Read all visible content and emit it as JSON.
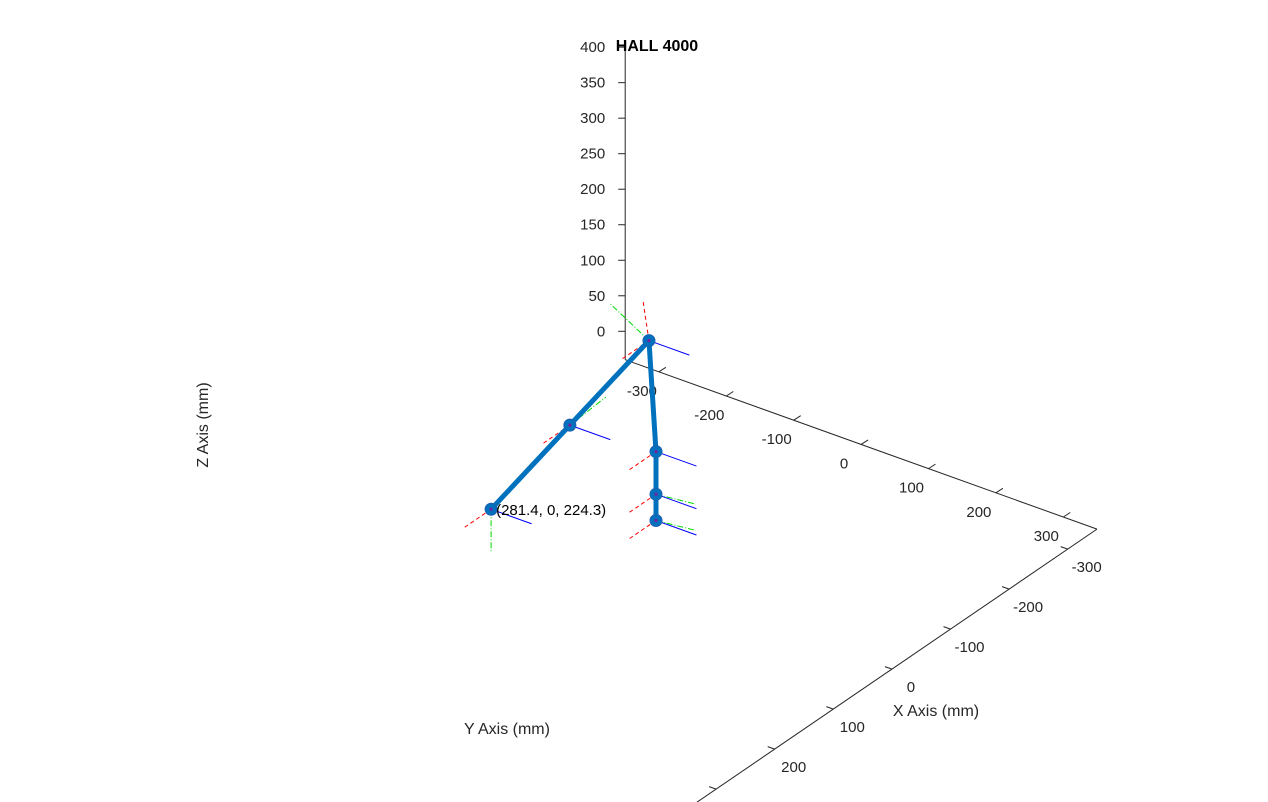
{
  "chart_data": {
    "type": "line3d",
    "title": "HALL 4000",
    "xlabel": "X Axis (mm)",
    "ylabel": "Y Axis (mm)",
    "zlabel": "Z Axis (mm)",
    "xlim": [
      -350,
      350
    ],
    "ylim": [
      -350,
      350
    ],
    "zlim": [
      -40,
      410
    ],
    "x_ticks": [
      -300,
      -200,
      -100,
      0,
      100,
      200,
      300
    ],
    "y_ticks": [
      -300,
      -200,
      -100,
      0,
      100,
      200,
      300
    ],
    "z_ticks": [
      0,
      50,
      100,
      150,
      200,
      250,
      300,
      350,
      400
    ],
    "grid": false,
    "series": [
      {
        "color": "#0072BD",
        "joints": [
          {
            "x": 0,
            "y": 0,
            "z": 50
          },
          {
            "x": 0,
            "y": 0,
            "z": 87
          },
          {
            "x": 0,
            "y": 0,
            "z": 147
          },
          {
            "x": 12,
            "y": 0,
            "z": 310
          },
          {
            "x": 147,
            "y": 0,
            "z": 267
          },
          {
            "x": 281.4,
            "y": 0,
            "z": 224.3
          }
        ]
      }
    ],
    "annotations": [
      {
        "text": "(281.4, 0, 224.3)",
        "x": 281.4,
        "y": 0,
        "z": 224.3
      }
    ],
    "frame_colors": {
      "x": "#FF0000",
      "y": "#00DD00",
      "z": "#0000FF"
    }
  }
}
